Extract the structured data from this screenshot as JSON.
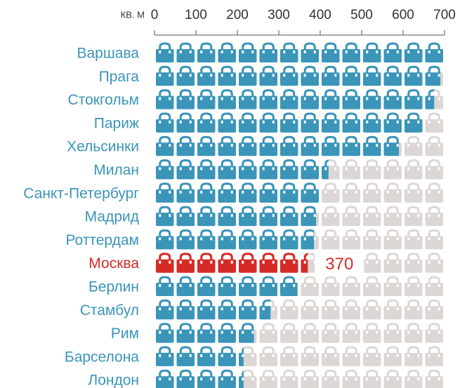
{
  "chart_data": {
    "type": "pictograph_bar",
    "unit_label": "КВ. М",
    "categories": [
      "Варшава",
      "Прага",
      "Стокгольм",
      "Париж",
      "Хельсинки",
      "Милан",
      "Санкт-Петербург",
      "Мадрид",
      "Роттердам",
      "Москва",
      "Берлин",
      "Стамбул",
      "Рим",
      "Барселона",
      "Лондон"
    ],
    "values": [
      700,
      690,
      675,
      650,
      590,
      420,
      400,
      390,
      385,
      370,
      345,
      280,
      240,
      215,
      215
    ],
    "value_labels": [
      null,
      null,
      null,
      null,
      null,
      null,
      null,
      null,
      null,
      "370",
      null,
      null,
      null,
      null,
      null
    ],
    "colors": [
      "#3a95b9",
      "#3a95b9",
      "#3a95b9",
      "#3a95b9",
      "#3a95b9",
      "#3a95b9",
      "#3a95b9",
      "#3a95b9",
      "#3a95b9",
      "#d52b26",
      "#3a95b9",
      "#3a95b9",
      "#3a95b9",
      "#3a95b9",
      "#3a95b9"
    ],
    "empty_color": "#dcd7d5",
    "icon_unit": 50,
    "xlim": [
      0,
      700
    ],
    "xticks": [
      0,
      100,
      200,
      300,
      400,
      500,
      600,
      700
    ]
  }
}
